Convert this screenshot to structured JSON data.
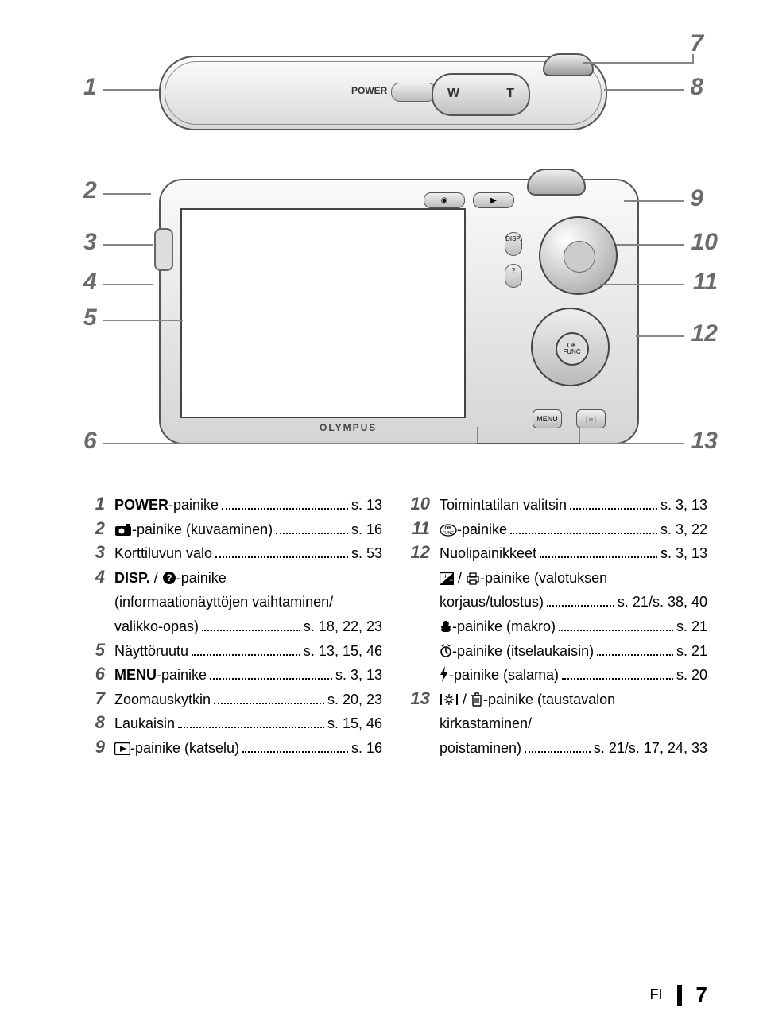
{
  "diagram": {
    "callouts_left_top": [
      "1"
    ],
    "callouts_right_top": [
      "7",
      "8"
    ],
    "callouts_left_back": [
      "2",
      "3",
      "4",
      "5",
      "6"
    ],
    "callouts_right_back": [
      "9",
      "10",
      "11",
      "12",
      "13"
    ],
    "power_label": "POWER",
    "zoom_w": "W",
    "zoom_t": "T",
    "topbtn_cam": "◉",
    "topbtn_play": "▶",
    "disp_label": "DISP.",
    "help_label": "?",
    "okfunc_1": "OK",
    "okfunc_2": "FUNC",
    "menu_label": "MENU",
    "bright_label": "|☼|",
    "brand": "OLYMPUS"
  },
  "left": [
    {
      "n": "1",
      "label_pre": "",
      "label_strong": "POWER",
      "label_post": "-painike",
      "pg": "s. 13"
    },
    {
      "n": "2",
      "icon": "cam",
      "label": "-painike (kuvaaminen)",
      "pg": "s. 16"
    },
    {
      "n": "3",
      "label": "Korttiluvun valo",
      "pg": "s. 53"
    },
    {
      "n": "4",
      "label_strong": "DISP.",
      "label_post": " / ",
      "icon2": "help",
      "label2": "-painike"
    },
    {
      "cont": true,
      "label": "(informaationäyttöjen vaihtaminen/"
    },
    {
      "cont": true,
      "label": "valikko-opas)",
      "pg": "s. 18, 22, 23"
    },
    {
      "n": "5",
      "label": "Näyttöruutu",
      "pg": "s. 13, 15, 46"
    },
    {
      "n": "6",
      "label_strong": "MENU",
      "label_post": "-painike",
      "pg": "s. 3, 13"
    },
    {
      "n": "7",
      "label": "Zoomauskytkin",
      "pg": "s. 20, 23"
    },
    {
      "n": "8",
      "label": "Laukaisin",
      "pg": "s. 15, 46"
    },
    {
      "n": "9",
      "icon": "play",
      "label": "-painike (katselu)",
      "pg": "s. 16"
    }
  ],
  "right": [
    {
      "n": "10",
      "label": "Toimintatilan valitsin",
      "pg": "s. 3, 13"
    },
    {
      "n": "11",
      "icon": "okfunc",
      "label": "-painike",
      "pg": "s. 3, 22"
    },
    {
      "n": "12",
      "label": "Nuolipainikkeet",
      "pg": "s. 3, 13"
    },
    {
      "cont": true,
      "icon": "exp",
      "label_mid": " / ",
      "icon2": "print",
      "label": "-painike (valotuksen"
    },
    {
      "cont": true,
      "label": "korjaus/tulostus)",
      "pg": "s. 21/s. 38, 40"
    },
    {
      "cont": true,
      "icon": "macro",
      "label": "-painike (makro)",
      "pg": "s. 21"
    },
    {
      "cont": true,
      "icon": "timer",
      "label": "-painike (itselaukaisin)",
      "pg": "s. 21"
    },
    {
      "cont": true,
      "icon": "flash",
      "label": "-painike (salama)",
      "pg": "s. 20"
    },
    {
      "n": "13",
      "icon": "bright",
      "label_mid": " / ",
      "icon2": "trash",
      "label": "-painike (taustavalon"
    },
    {
      "cont": true,
      "label": "kirkastaminen/"
    },
    {
      "cont": true,
      "label": "poistaminen)",
      "pg": "s. 21/s. 17, 24, 33"
    }
  ],
  "footer": {
    "lang": "FI",
    "page": "7"
  }
}
